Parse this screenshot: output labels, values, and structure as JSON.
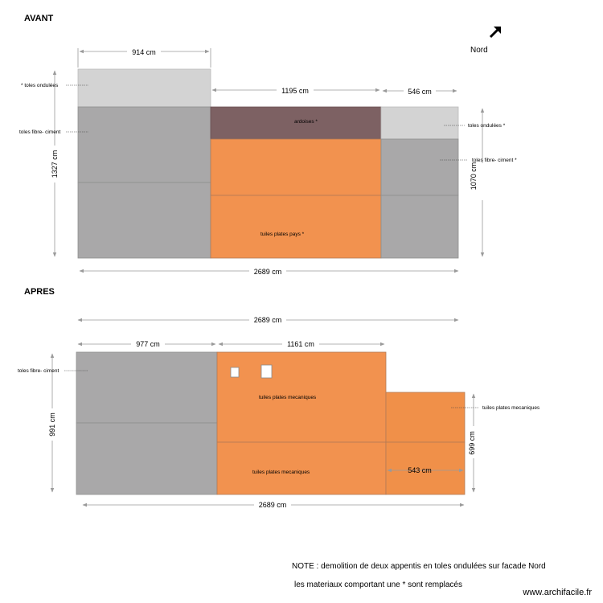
{
  "avant": {
    "title": "AVANT",
    "dims": {
      "w1": "914 cm",
      "w2": "1195 cm",
      "w3": "546 cm",
      "total": "2689 cm",
      "h_left": "1327 cm",
      "h_right": "1070 cm"
    },
    "labels": {
      "toles_ondulees_left": "*  toles ondulées",
      "toles_fibre_left": "toles fibre- ciment",
      "ardoises": "ardoises  *",
      "tuiles_plates_pays": "tuiles plates pays  *",
      "toles_ondulees_right": "toles ondulées  *",
      "toles_fibre_right": "toles fibre- ciment   *"
    }
  },
  "apres": {
    "title": "APRES",
    "dims": {
      "total_top": "2689 cm",
      "w1": "977 cm",
      "w2": "1161 cm",
      "w3": "543 cm",
      "total_bottom": "2689 cm",
      "h_left": "991 cm",
      "h_right": "699 cm"
    },
    "labels": {
      "toles_fibre_left": "toles fibre- ciment",
      "tuiles_meca_top": "tuiles plates mecaniques",
      "tuiles_meca_bottom": "tuiles plates mecaniques",
      "tuiles_meca_right": "tuiles plates mecaniques"
    }
  },
  "north": {
    "label": "Nord",
    "icon": "north-arrow-icon"
  },
  "note": {
    "line1": "NOTE : demolition  de deux appentis en toles ondulées sur facade Nord",
    "line2": "les materiaux comportant une * sont remplacés"
  },
  "watermark": "www.archifacile.fr",
  "colors": {
    "gray": "#a9a8a9",
    "light_gray": "#d3d3d3",
    "slate": "#7d6163",
    "orange": "#f2924f",
    "orange_alt": "#f09049"
  }
}
